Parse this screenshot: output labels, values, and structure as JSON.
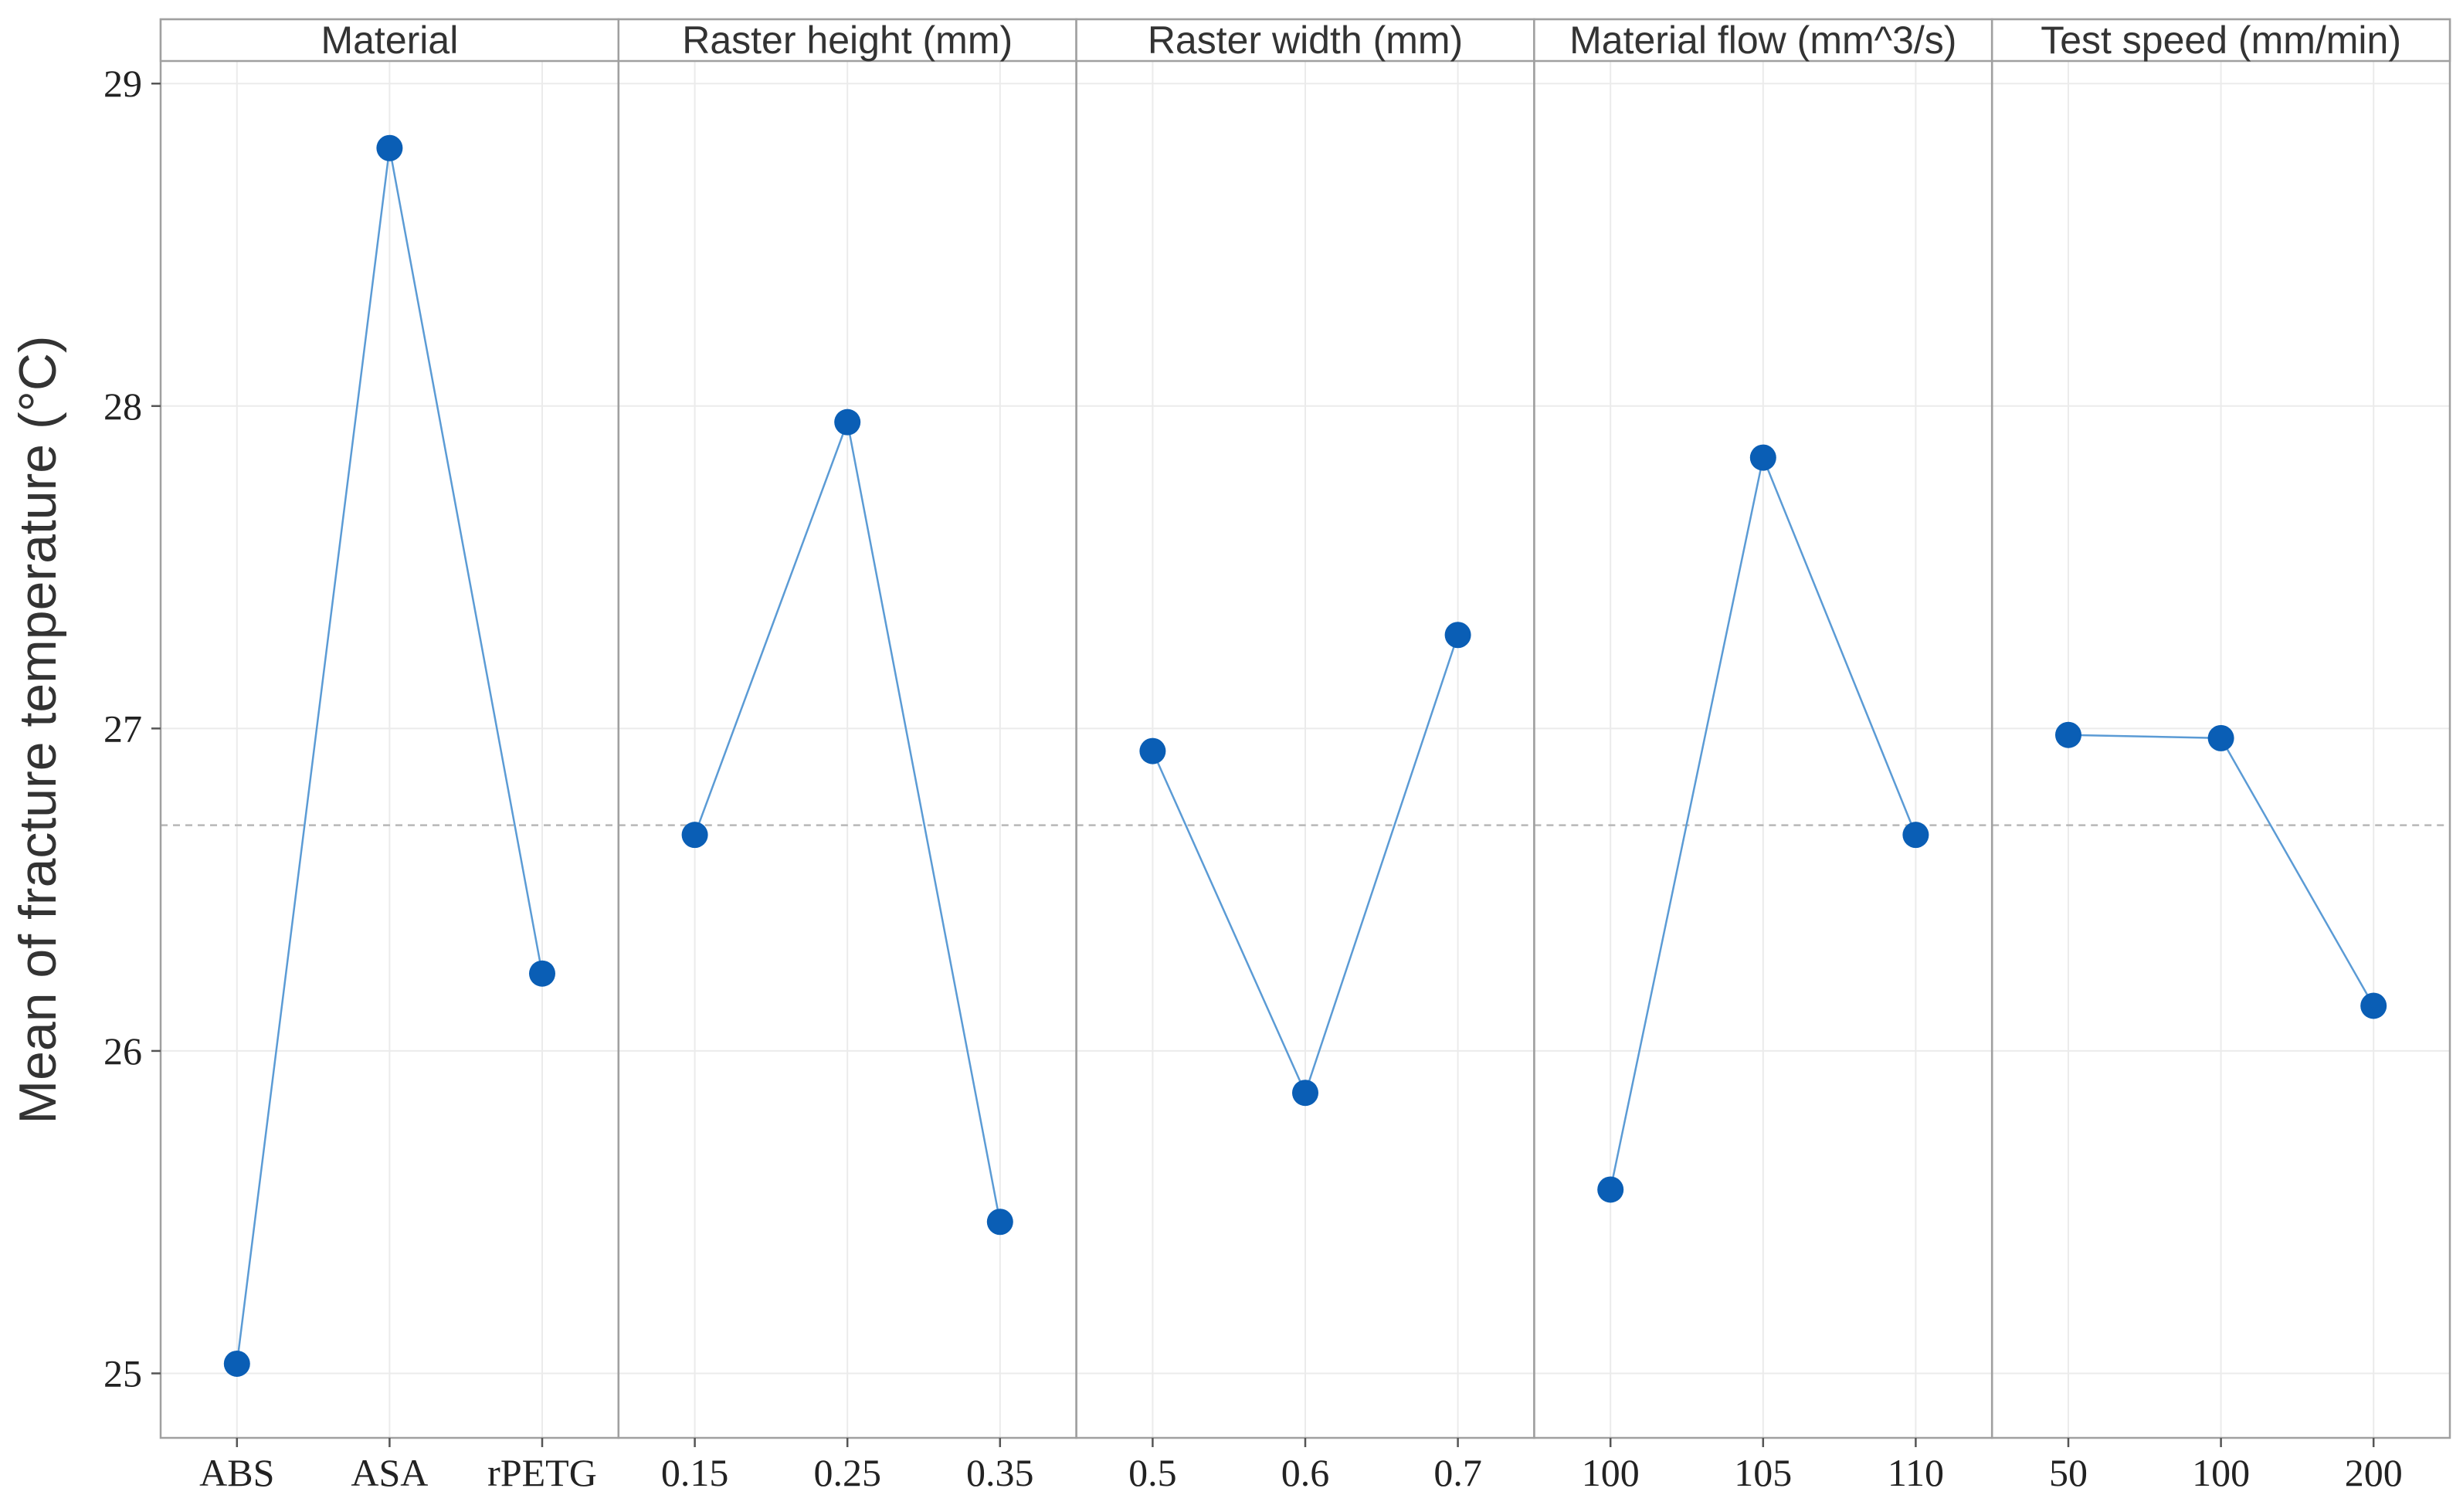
{
  "chart_data": {
    "type": "line",
    "ylabel": "Mean of fracture temperature (°C)",
    "ylim": [
      24.8,
      29.07
    ],
    "y_ticks": [
      25,
      26,
      27,
      28,
      29
    ],
    "reference_mean": 26.7,
    "grid": true,
    "colors": {
      "line": "#5b9bd5",
      "point": "#0a5eb5",
      "reference": "#b8b8b8"
    },
    "panels": [
      {
        "title": "Material",
        "categories": [
          "ABS",
          "ASA",
          "rPETG"
        ],
        "values": [
          25.03,
          28.8,
          26.24
        ]
      },
      {
        "title": "Raster height (mm)",
        "categories": [
          "0.15",
          "0.25",
          "0.35"
        ],
        "values": [
          26.67,
          27.95,
          25.47
        ]
      },
      {
        "title": "Raster width (mm)",
        "categories": [
          "0.5",
          "0.6",
          "0.7"
        ],
        "values": [
          26.93,
          25.87,
          27.29
        ]
      },
      {
        "title": "Material flow (mm^3/s)",
        "categories": [
          "100",
          "105",
          "110"
        ],
        "values": [
          25.57,
          27.84,
          26.67
        ]
      },
      {
        "title": "Test speed (mm/min)",
        "categories": [
          "50",
          "100",
          "200"
        ],
        "values": [
          26.98,
          26.97,
          26.14
        ]
      }
    ]
  }
}
